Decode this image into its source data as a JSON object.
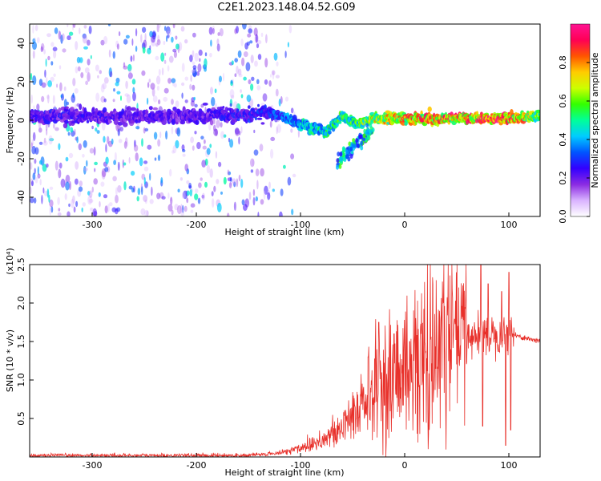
{
  "title": "C2E1.2023.148.04.52.G09",
  "chart_data": [
    {
      "type": "heatmap",
      "name": "spectrogram",
      "xlabel": "Height of straight line (km)",
      "ylabel": "Frequency (Hz)",
      "xlim": [
        -360,
        130
      ],
      "ylim": [
        -50,
        50
      ],
      "xticks": [
        -300,
        -200,
        -100,
        0,
        100
      ],
      "yticks": [
        -40,
        -20,
        0,
        20,
        40
      ],
      "colorbar": {
        "label": "Normalized spectral amplitude",
        "range": [
          0,
          1
        ],
        "ticks": [
          0.0,
          0.2,
          0.4,
          0.6,
          0.8
        ],
        "colors": [
          "#ffffff",
          "#d9b3ff",
          "#8a2be2",
          "#3300ff",
          "#0055ff",
          "#00ccff",
          "#00ff99",
          "#33ff00",
          "#ccff00",
          "#ffcc00",
          "#ff5500",
          "#ff0055",
          "#ff1493"
        ]
      },
      "ridge": [
        {
          "x": -360,
          "y": 2,
          "amp": 0.25
        },
        {
          "x": -200,
          "y": 2,
          "amp": 0.22
        },
        {
          "x": -130,
          "y": 4,
          "amp": 0.3
        },
        {
          "x": -100,
          "y": -2,
          "amp": 0.45
        },
        {
          "x": -75,
          "y": -6,
          "amp": 0.5
        },
        {
          "x": -60,
          "y": 2,
          "amp": 0.55
        },
        {
          "x": -45,
          "y": -2,
          "amp": 0.6
        },
        {
          "x": -30,
          "y": 1,
          "amp": 0.7
        },
        {
          "x": 0,
          "y": 1,
          "amp": 0.8
        },
        {
          "x": 100,
          "y": 1,
          "amp": 0.9
        },
        {
          "x": 130,
          "y": 2,
          "amp": 0.6
        }
      ]
    },
    {
      "type": "line",
      "name": "snr",
      "xlabel": "Height of straight line (km)",
      "ylabel": "SNR (10 * v/v)",
      "yscale_label": "(x10⁴)",
      "color": "#e8302a",
      "xlim": [
        -360,
        130
      ],
      "ylim": [
        0,
        2.5
      ],
      "xticks": [
        -300,
        -200,
        -100,
        0,
        100
      ],
      "yticks": [
        0.5,
        1.0,
        1.5,
        2.0,
        2.5
      ],
      "envelope": [
        {
          "x": -360,
          "y": 0.02
        },
        {
          "x": -150,
          "y": 0.02
        },
        {
          "x": -120,
          "y": 0.05
        },
        {
          "x": -100,
          "y": 0.12
        },
        {
          "x": -80,
          "y": 0.22
        },
        {
          "x": -60,
          "y": 0.35
        },
        {
          "x": -45,
          "y": 0.65
        },
        {
          "x": -30,
          "y": 0.9
        },
        {
          "x": -20,
          "y": 1.05
        },
        {
          "x": 0,
          "y": 1.25
        },
        {
          "x": 20,
          "y": 1.38
        },
        {
          "x": 40,
          "y": 1.5
        },
        {
          "x": 60,
          "y": 1.58
        },
        {
          "x": 80,
          "y": 1.6
        },
        {
          "x": 100,
          "y": 1.6
        },
        {
          "x": 130,
          "y": 1.5
        }
      ],
      "spikes": [
        {
          "x": 73,
          "y": 2.5
        },
        {
          "x": 75,
          "y": 0.4
        },
        {
          "x": 80,
          "y": 2.25
        },
        {
          "x": 93,
          "y": 2.15
        },
        {
          "x": 97,
          "y": 0.15
        },
        {
          "x": 100,
          "y": 2.4
        },
        {
          "x": 102,
          "y": 0.35
        },
        {
          "x": -35,
          "y": 1.3
        },
        {
          "x": -25,
          "y": 1.75
        },
        {
          "x": -10,
          "y": 1.6
        },
        {
          "x": 5,
          "y": 1.5
        }
      ]
    }
  ]
}
